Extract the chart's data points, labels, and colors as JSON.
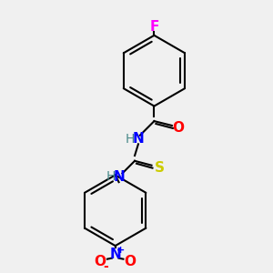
{
  "background_color": "#f0f0f0",
  "bond_color": "#000000",
  "atom_colors": {
    "F": "#ff00ff",
    "O": "#ff0000",
    "N": "#0000ff",
    "S": "#cccc00",
    "H": "#4a8a8a",
    "C": "#000000"
  },
  "figsize": [
    3.0,
    3.0
  ],
  "dpi": 100
}
